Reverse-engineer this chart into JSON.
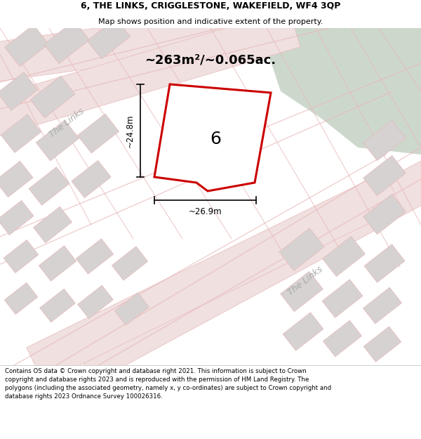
{
  "title": "6, THE LINKS, CRIGGLESTONE, WAKEFIELD, WF4 3QP",
  "subtitle": "Map shows position and indicative extent of the property.",
  "area_label": "~263m²/~0.065ac.",
  "plot_number": "6",
  "dim_width": "~26.9m",
  "dim_height": "~24.8m",
  "street_label1": "The Links",
  "street_label2": "The Links",
  "footer": "Contains OS data © Crown copyright and database right 2021. This information is subject to Crown copyright and database rights 2023 and is reproduced with the permission of HM Land Registry. The polygons (including the associated geometry, namely x, y co-ordinates) are subject to Crown copyright and database rights 2023 Ordnance Survey 100026316.",
  "bg_color": "#eeecec",
  "green_area_color": "#cdd8cc",
  "plot_fill": "#ffffff",
  "plot_border": "#cc0000",
  "block_color": "#d6d2d2",
  "road_line_color": "#e8b8b8",
  "figsize": [
    6.0,
    6.25
  ],
  "dpi": 100,
  "title_fs": 9,
  "subtitle_fs": 8,
  "footer_fs": 6.2
}
